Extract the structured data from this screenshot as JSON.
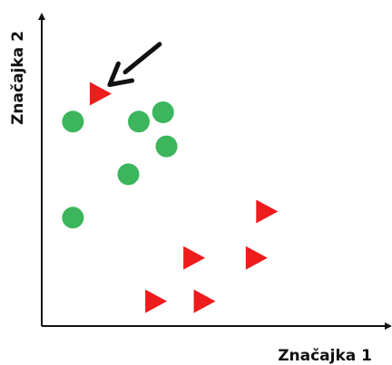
{
  "chart_data": {
    "type": "scatter",
    "xlabel": "Značajka 1",
    "ylabel": "Značajka 2",
    "xlim": [
      0,
      10
    ],
    "ylim": [
      0,
      10
    ],
    "grid": false,
    "axis_ticks": false,
    "colors": {
      "circle": "#3cb55c",
      "triangle": "#ee1c1c",
      "axis": "#111111",
      "arrow": "#111111"
    },
    "series": [
      {
        "marker": "circle",
        "color": "#3cb55c",
        "points": [
          {
            "x": 0.9,
            "y": 6.6
          },
          {
            "x": 2.5,
            "y": 4.9
          },
          {
            "x": 0.9,
            "y": 3.5
          },
          {
            "x": 2.8,
            "y": 6.6
          },
          {
            "x": 3.6,
            "y": 5.8
          },
          {
            "x": 3.5,
            "y": 6.9
          }
        ]
      },
      {
        "marker": "triangle",
        "color": "#ee1c1c",
        "points": [
          {
            "x": 1.7,
            "y": 7.5
          },
          {
            "x": 6.5,
            "y": 3.7
          },
          {
            "x": 4.4,
            "y": 2.2
          },
          {
            "x": 6.2,
            "y": 2.2
          },
          {
            "x": 3.3,
            "y": 0.8
          },
          {
            "x": 4.7,
            "y": 0.8
          }
        ]
      }
    ],
    "annotation": {
      "type": "arrow",
      "points_to": {
        "x": 1.7,
        "y": 7.5
      },
      "from": {
        "x": 3.4,
        "y": 9.1
      }
    }
  }
}
